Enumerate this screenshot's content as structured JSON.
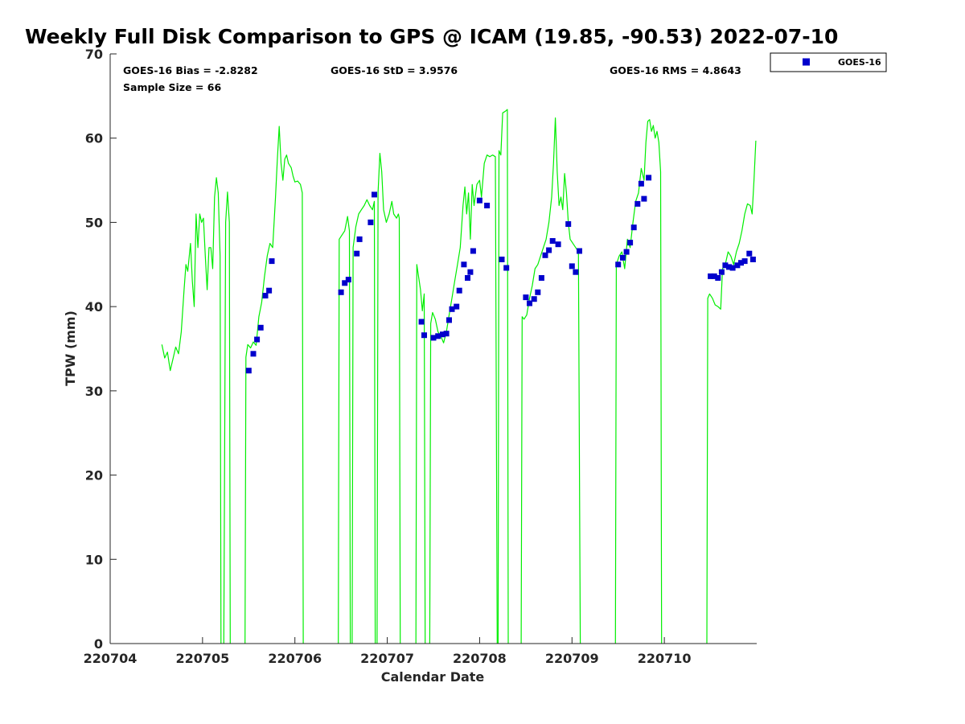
{
  "chart_data": {
    "type": "scatter",
    "title": "Weekly Full Disk Comparison to GPS @ ICAM (19.85, -90.53) 2022-07-10",
    "xlabel": "Calendar Date",
    "ylabel": "TPW (mm)",
    "ylim": [
      0,
      70
    ],
    "yticks": [
      "0",
      "10",
      "20",
      "30",
      "40",
      "50",
      "60",
      "70"
    ],
    "xlim": [
      0,
      7.0
    ],
    "xtick_labels": [
      "220704",
      "220705",
      "220706",
      "220707",
      "220708",
      "220709",
      "220710"
    ],
    "legend_position": "top-right",
    "grid": false,
    "stats": {
      "bias": "GOES-16 Bias = -2.8282",
      "std": "GOES-16 StD = 3.9576",
      "rms": "GOES-16 RMS = 4.8643",
      "sample": "Sample Size = 66"
    },
    "series": [
      {
        "name": "GOES-16",
        "color": "#0000cc",
        "marker": "square",
        "points": [
          [
            1.5,
            32.4
          ],
          [
            1.55,
            34.4
          ],
          [
            1.59,
            36.1
          ],
          [
            1.63,
            37.5
          ],
          [
            1.68,
            41.3
          ],
          [
            1.72,
            41.9
          ],
          [
            1.75,
            45.4
          ],
          [
            2.5,
            41.7
          ],
          [
            2.54,
            42.8
          ],
          [
            2.58,
            43.2
          ],
          [
            2.67,
            46.3
          ],
          [
            2.7,
            48.0
          ],
          [
            2.82,
            50.0
          ],
          [
            2.86,
            53.3
          ],
          [
            3.37,
            38.2
          ],
          [
            3.4,
            36.6
          ],
          [
            3.5,
            36.3
          ],
          [
            3.55,
            36.5
          ],
          [
            3.6,
            36.7
          ],
          [
            3.64,
            36.8
          ],
          [
            3.67,
            38.4
          ],
          [
            3.7,
            39.7
          ],
          [
            3.75,
            40.0
          ],
          [
            3.78,
            41.9
          ],
          [
            3.83,
            45.0
          ],
          [
            3.87,
            43.4
          ],
          [
            3.9,
            44.1
          ],
          [
            3.93,
            46.6
          ],
          [
            4.0,
            52.6
          ],
          [
            4.08,
            52.0
          ],
          [
            4.24,
            45.6
          ],
          [
            4.29,
            44.6
          ],
          [
            4.5,
            41.1
          ],
          [
            4.54,
            40.4
          ],
          [
            4.59,
            40.9
          ],
          [
            4.63,
            41.7
          ],
          [
            4.67,
            43.4
          ],
          [
            4.71,
            46.1
          ],
          [
            4.75,
            46.7
          ],
          [
            4.79,
            47.8
          ],
          [
            4.85,
            47.4
          ],
          [
            4.96,
            49.8
          ],
          [
            5.0,
            44.8
          ],
          [
            5.04,
            44.1
          ],
          [
            5.08,
            46.6
          ],
          [
            5.5,
            45.0
          ],
          [
            5.55,
            45.8
          ],
          [
            5.59,
            46.5
          ],
          [
            5.63,
            47.6
          ],
          [
            5.67,
            49.4
          ],
          [
            5.71,
            52.2
          ],
          [
            5.75,
            54.6
          ],
          [
            5.78,
            52.8
          ],
          [
            5.83,
            55.3
          ],
          [
            6.5,
            43.6
          ],
          [
            6.54,
            43.6
          ],
          [
            6.58,
            43.4
          ],
          [
            6.62,
            44.1
          ],
          [
            6.66,
            44.9
          ],
          [
            6.7,
            44.7
          ],
          [
            6.74,
            44.6
          ],
          [
            6.79,
            44.9
          ],
          [
            6.83,
            45.2
          ],
          [
            6.87,
            45.4
          ],
          [
            6.92,
            46.3
          ],
          [
            6.96,
            45.6
          ]
        ]
      },
      {
        "name": "",
        "color": "#00ee00",
        "marker": "line",
        "segments": [
          [
            [
              0.56,
              35.5
            ],
            [
              0.59,
              33.9
            ],
            [
              0.62,
              34.6
            ],
            [
              0.65,
              32.4
            ],
            [
              0.68,
              33.8
            ],
            [
              0.71,
              35.2
            ],
            [
              0.74,
              34.4
            ],
            [
              0.77,
              37.0
            ],
            [
              0.8,
              42.0
            ],
            [
              0.82,
              45.0
            ],
            [
              0.84,
              44.2
            ],
            [
              0.87,
              47.5
            ],
            [
              0.89,
              43.0
            ],
            [
              0.91,
              40.0
            ],
            [
              0.93,
              51.0
            ],
            [
              0.95,
              47.0
            ],
            [
              0.97,
              51.0
            ],
            [
              0.99,
              50.0
            ],
            [
              1.01,
              50.5
            ],
            [
              1.03,
              46.0
            ],
            [
              1.05,
              42.0
            ],
            [
              1.07,
              47.0
            ],
            [
              1.09,
              47.0
            ],
            [
              1.11,
              44.5
            ],
            [
              1.13,
              53.0
            ],
            [
              1.15,
              55.3
            ],
            [
              1.17,
              53.5
            ],
            [
              1.19,
              46.0
            ],
            [
              1.2,
              0.0
            ]
          ],
          [
            [
              1.23,
              0.0
            ],
            [
              1.25,
              50.0
            ],
            [
              1.27,
              53.6
            ],
            [
              1.29,
              50.0
            ],
            [
              1.3,
              0.0
            ]
          ],
          [
            [
              1.46,
              0.0
            ],
            [
              1.47,
              34.0
            ],
            [
              1.49,
              35.5
            ],
            [
              1.52,
              35.1
            ],
            [
              1.55,
              35.8
            ],
            [
              1.58,
              35.4
            ],
            [
              1.61,
              38.8
            ],
            [
              1.64,
              40.5
            ],
            [
              1.67,
              43.5
            ],
            [
              1.7,
              46.0
            ],
            [
              1.73,
              47.5
            ],
            [
              1.76,
              47.0
            ],
            [
              1.79,
              53.0
            ],
            [
              1.81,
              57.5
            ],
            [
              1.83,
              61.4
            ],
            [
              1.85,
              57.0
            ],
            [
              1.87,
              55.0
            ],
            [
              1.89,
              57.5
            ],
            [
              1.91,
              58.0
            ],
            [
              1.93,
              57.0
            ],
            [
              1.96,
              56.5
            ],
            [
              1.98,
              55.5
            ],
            [
              2.0,
              54.8
            ],
            [
              2.03,
              54.9
            ],
            [
              2.06,
              54.5
            ],
            [
              2.08,
              53.5
            ],
            [
              2.09,
              0.0
            ]
          ],
          [
            [
              2.47,
              0.0
            ],
            [
              2.48,
              48.0
            ],
            [
              2.51,
              48.5
            ],
            [
              2.54,
              49.0
            ],
            [
              2.57,
              50.7
            ],
            [
              2.59,
              49.0
            ],
            [
              2.6,
              0.0
            ]
          ],
          [
            [
              2.62,
              0.0
            ],
            [
              2.63,
              47.0
            ],
            [
              2.66,
              49.5
            ],
            [
              2.69,
              51.0
            ],
            [
              2.72,
              51.5
            ],
            [
              2.75,
              52.0
            ],
            [
              2.78,
              52.7
            ],
            [
              2.81,
              52.0
            ],
            [
              2.84,
              51.5
            ],
            [
              2.86,
              52.5
            ],
            [
              2.87,
              0.0
            ]
          ],
          [
            [
              2.89,
              0.0
            ],
            [
              2.9,
              53.5
            ],
            [
              2.92,
              58.2
            ],
            [
              2.94,
              56.0
            ],
            [
              2.96,
              51.5
            ],
            [
              2.99,
              50.0
            ],
            [
              3.02,
              51.0
            ],
            [
              3.05,
              52.5
            ],
            [
              3.07,
              51.0
            ],
            [
              3.1,
              50.5
            ],
            [
              3.12,
              51.0
            ],
            [
              3.13,
              50.5
            ],
            [
              3.14,
              0.0
            ]
          ],
          [
            [
              3.31,
              0.0
            ],
            [
              3.32,
              45.0
            ],
            [
              3.34,
              43.5
            ],
            [
              3.36,
              42.0
            ],
            [
              3.38,
              39.5
            ],
            [
              3.4,
              41.5
            ],
            [
              3.41,
              0.0
            ]
          ],
          [
            [
              3.46,
              0.0
            ],
            [
              3.47,
              38.0
            ],
            [
              3.49,
              39.3
            ],
            [
              3.52,
              38.5
            ],
            [
              3.55,
              37.0
            ],
            [
              3.58,
              36.5
            ],
            [
              3.61,
              35.7
            ],
            [
              3.64,
              37.0
            ],
            [
              3.67,
              39.0
            ],
            [
              3.7,
              41.0
            ],
            [
              3.73,
              43.0
            ],
            [
              3.76,
              45.0
            ],
            [
              3.79,
              47.0
            ],
            [
              3.82,
              52.0
            ],
            [
              3.84,
              54.2
            ],
            [
              3.86,
              51.0
            ],
            [
              3.88,
              53.5
            ],
            [
              3.9,
              48.0
            ],
            [
              3.92,
              54.5
            ],
            [
              3.94,
              52.0
            ],
            [
              3.97,
              54.5
            ],
            [
              4.0,
              55.0
            ],
            [
              4.02,
              53.0
            ],
            [
              4.05,
              57.0
            ],
            [
              4.08,
              58.0
            ],
            [
              4.11,
              57.8
            ],
            [
              4.14,
              58.0
            ],
            [
              4.17,
              57.8
            ],
            [
              4.19,
              0.0
            ]
          ],
          [
            [
              4.2,
              0.0
            ],
            [
              4.21,
              58.5
            ],
            [
              4.23,
              58.0
            ],
            [
              4.25,
              63.0
            ],
            [
              4.28,
              63.2
            ],
            [
              4.3,
              63.4
            ],
            [
              4.31,
              0.0
            ]
          ],
          [
            [
              4.45,
              0.0
            ],
            [
              4.46,
              38.8
            ],
            [
              4.48,
              38.5
            ],
            [
              4.51,
              39.0
            ],
            [
              4.54,
              41.0
            ],
            [
              4.57,
              42.5
            ],
            [
              4.6,
              44.5
            ],
            [
              4.63,
              45.0
            ],
            [
              4.66,
              46.0
            ],
            [
              4.69,
              47.0
            ],
            [
              4.72,
              48.0
            ],
            [
              4.75,
              50.0
            ],
            [
              4.78,
              53.0
            ],
            [
              4.8,
              57.0
            ],
            [
              4.82,
              62.4
            ],
            [
              4.84,
              56.0
            ],
            [
              4.86,
              52.0
            ],
            [
              4.88,
              53.0
            ],
            [
              4.9,
              51.5
            ],
            [
              4.92,
              55.8
            ],
            [
              4.94,
              53.5
            ],
            [
              4.96,
              50.0
            ],
            [
              4.98,
              48.0
            ],
            [
              5.01,
              47.5
            ],
            [
              5.04,
              47.0
            ],
            [
              5.07,
              46.5
            ],
            [
              5.09,
              0.0
            ]
          ],
          [
            [
              5.47,
              0.0
            ],
            [
              5.48,
              45.0
            ],
            [
              5.51,
              46.0
            ],
            [
              5.54,
              46.5
            ],
            [
              5.57,
              44.5
            ],
            [
              5.6,
              48.0
            ],
            [
              5.63,
              47.0
            ],
            [
              5.66,
              50.0
            ],
            [
              5.69,
              52.5
            ],
            [
              5.72,
              53.5
            ],
            [
              5.75,
              56.4
            ],
            [
              5.78,
              55.0
            ],
            [
              5.8,
              59.5
            ],
            [
              5.82,
              62.0
            ],
            [
              5.84,
              62.2
            ],
            [
              5.86,
              60.8
            ],
            [
              5.88,
              61.5
            ],
            [
              5.9,
              60.0
            ],
            [
              5.92,
              60.8
            ],
            [
              5.94,
              59.5
            ],
            [
              5.96,
              56.0
            ],
            [
              5.97,
              0.0
            ]
          ],
          [
            [
              6.46,
              0.0
            ],
            [
              6.47,
              41.0
            ],
            [
              6.49,
              41.5
            ],
            [
              6.52,
              41.0
            ],
            [
              6.55,
              40.2
            ],
            [
              6.58,
              40.0
            ],
            [
              6.61,
              39.7
            ],
            [
              6.63,
              44.5
            ],
            [
              6.66,
              45.0
            ],
            [
              6.69,
              46.5
            ],
            [
              6.72,
              46.0
            ],
            [
              6.75,
              45.0
            ],
            [
              6.78,
              46.5
            ],
            [
              6.81,
              47.5
            ],
            [
              6.84,
              49.0
            ],
            [
              6.87,
              51.0
            ],
            [
              6.9,
              52.2
            ],
            [
              6.93,
              52.0
            ],
            [
              6.95,
              51.0
            ],
            [
              6.97,
              55.0
            ],
            [
              6.99,
              59.7
            ]
          ]
        ]
      }
    ]
  }
}
